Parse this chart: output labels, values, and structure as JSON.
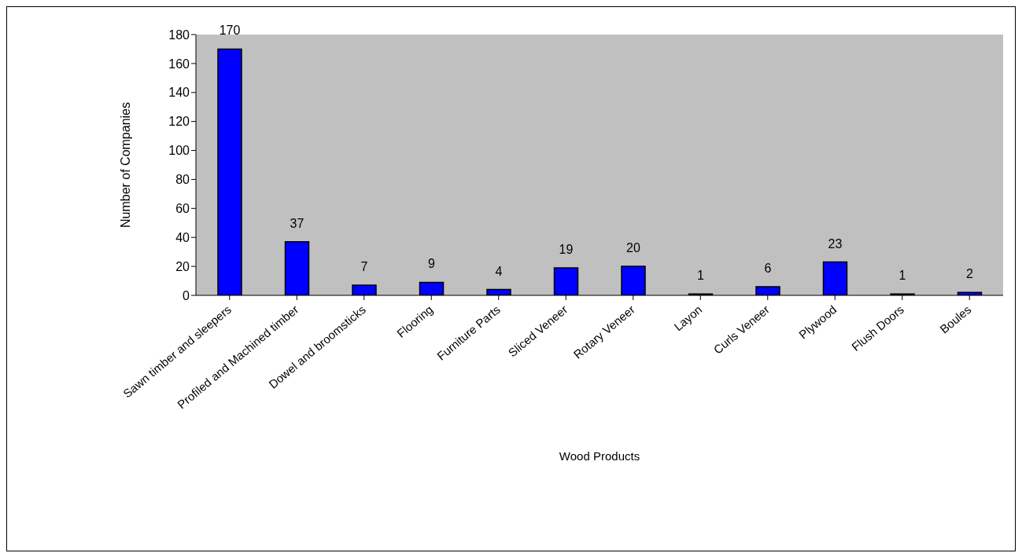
{
  "chart_data": {
    "type": "bar",
    "xlabel": "Wood Products",
    "ylabel": "Number of Companies",
    "categories": [
      "Sawn timber and  sleepers",
      "Profiled and Machined timber",
      "Dowel and broomsticks",
      "Flooring",
      "Furniture Parts",
      "Sliced Veneer",
      "Rotary Veneer",
      "Layon",
      "Curls Veneer",
      "Plywood",
      "Flush Doors",
      "Boules"
    ],
    "values": [
      170,
      37,
      7,
      9,
      4,
      19,
      20,
      1,
      6,
      23,
      1,
      2
    ],
    "color": "#0000ff",
    "ylim": [
      0,
      180
    ],
    "yticks": [
      0,
      20,
      40,
      60,
      80,
      100,
      120,
      140,
      160,
      180
    ],
    "data_labels": true,
    "grid": false
  }
}
